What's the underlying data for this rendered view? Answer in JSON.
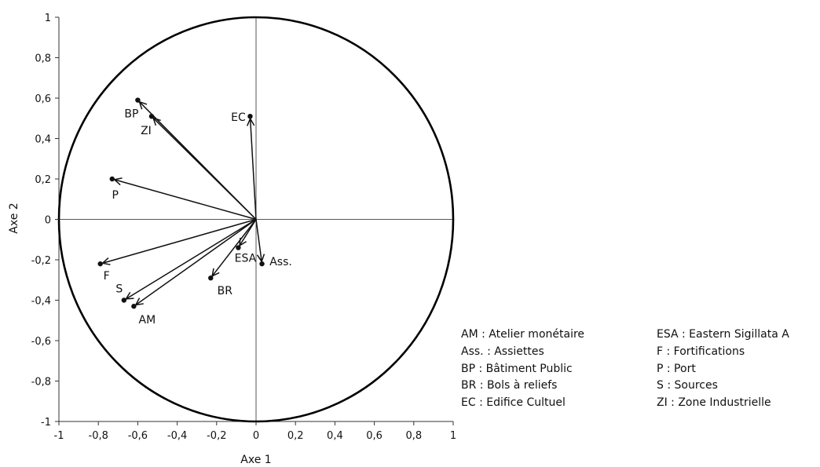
{
  "chart_data": {
    "type": "scatter",
    "title": "",
    "xlabel": "Axe 1",
    "ylabel": "Axe 2",
    "xlim": [
      -1,
      1
    ],
    "ylim": [
      -1,
      1
    ],
    "x_ticks": [
      "-1",
      "-0,8",
      "-0,6",
      "-0,4",
      "-0,2",
      "0",
      "0,2",
      "0,4",
      "0,6",
      "0,8",
      "1"
    ],
    "y_ticks": [
      "1",
      "0,8",
      "0,6",
      "0,4",
      "0,2",
      "0",
      "-0,2",
      "-0,4",
      "-0,6",
      "-0,8",
      "-1"
    ],
    "grid": false,
    "correlation_circle": true,
    "vectors": [
      {
        "label": "BP",
        "x": -0.6,
        "y": 0.59
      },
      {
        "label": "ZI",
        "x": -0.53,
        "y": 0.51
      },
      {
        "label": "EC",
        "x": -0.03,
        "y": 0.51
      },
      {
        "label": "P",
        "x": -0.73,
        "y": 0.2
      },
      {
        "label": "F",
        "x": -0.79,
        "y": -0.22
      },
      {
        "label": "S",
        "x": -0.67,
        "y": -0.4
      },
      {
        "label": "AM",
        "x": -0.62,
        "y": -0.43
      },
      {
        "label": "BR",
        "x": -0.23,
        "y": -0.29
      },
      {
        "label": "ESA",
        "x": -0.09,
        "y": -0.14
      },
      {
        "label": "Ass.",
        "x": 0.03,
        "y": -0.22
      }
    ],
    "legend": [
      "AM : Atelier monétaire",
      "Ass. : Assiettes",
      "BP : Bâtiment Public",
      "BR : Bols à reliefs",
      "EC : Edifice Cultuel",
      "ESA : Eastern Sigillata A",
      "F : Fortifications",
      "P : Port",
      "S : Sources",
      "ZI : Zone Industrielle"
    ]
  }
}
